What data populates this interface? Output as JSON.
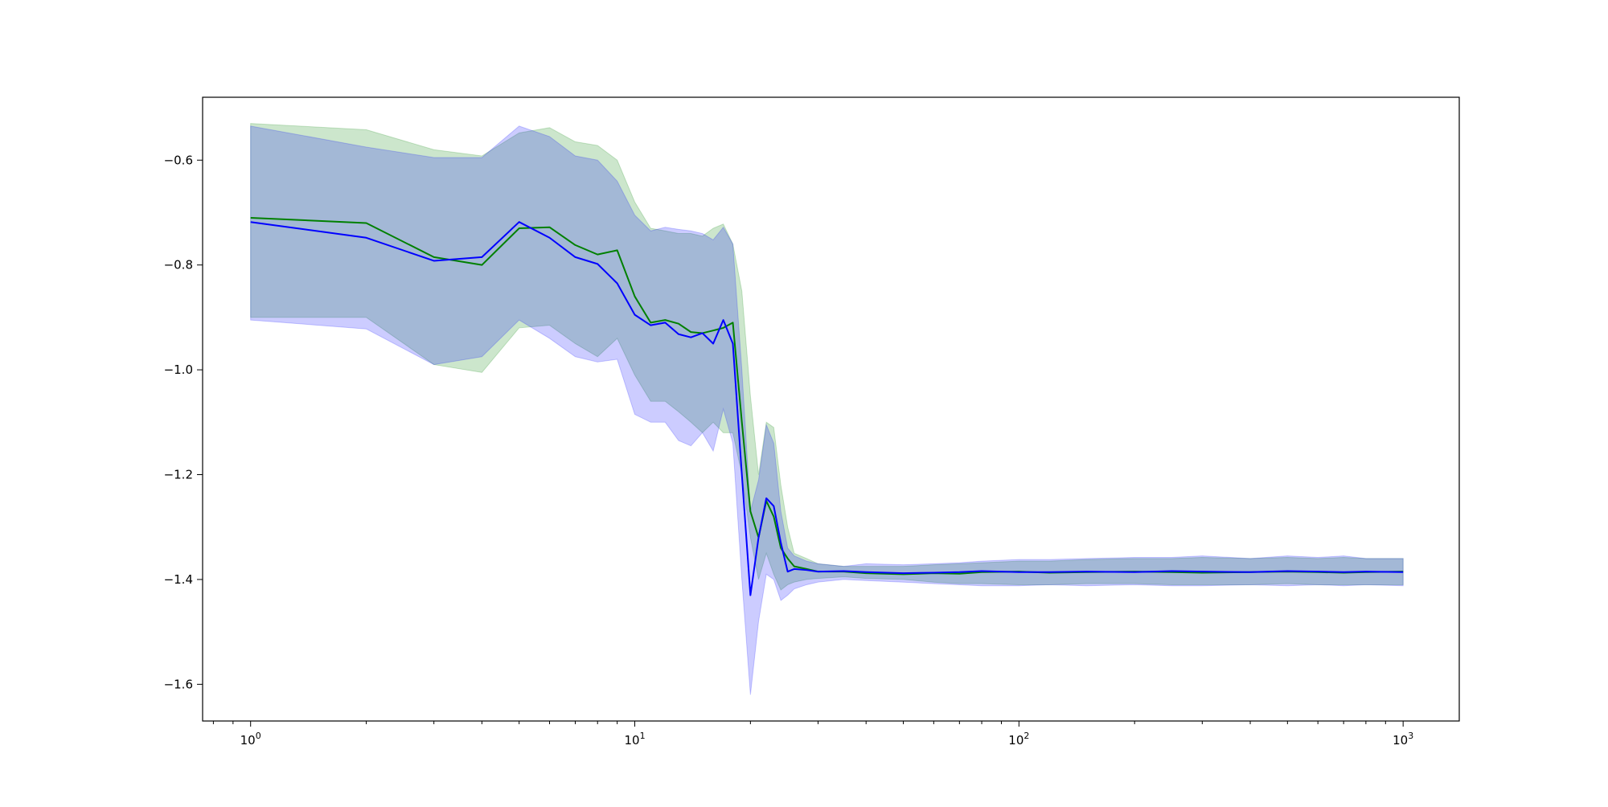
{
  "chart_data": {
    "type": "line",
    "title": "",
    "xlabel": "",
    "ylabel": "",
    "xscale": "log",
    "xlim": [
      0.75,
      1400
    ],
    "ylim": [
      -1.67,
      -0.48
    ],
    "grid": false,
    "x_ticks": [
      {
        "value": 1,
        "base": "10",
        "exp": "0"
      },
      {
        "value": 10,
        "base": "10",
        "exp": "1"
      },
      {
        "value": 100,
        "base": "10",
        "exp": "2"
      },
      {
        "value": 1000,
        "base": "10",
        "exp": "3"
      }
    ],
    "y_ticks": [
      {
        "value": -0.6,
        "label": "−0.6"
      },
      {
        "value": -0.8,
        "label": "−0.8"
      },
      {
        "value": -1.0,
        "label": "−1.0"
      },
      {
        "value": -1.2,
        "label": "−1.2"
      },
      {
        "value": -1.4,
        "label": "−1.4"
      },
      {
        "value": -1.6,
        "label": "−1.6"
      }
    ],
    "series": [
      {
        "color": "#008000",
        "band_color": "#008000",
        "band_opacity": 0.2,
        "x": [
          1,
          2,
          3,
          4,
          5,
          6,
          7,
          8,
          9,
          10,
          11,
          12,
          13,
          14,
          15,
          16,
          17,
          18,
          19,
          20,
          21,
          22,
          23,
          24,
          25,
          26,
          28,
          30,
          35,
          40,
          50,
          60,
          70,
          80,
          100,
          120,
          150,
          200,
          250,
          300,
          400,
          500,
          600,
          700,
          800,
          1000
        ],
        "y": [
          -0.71,
          -0.72,
          -0.785,
          -0.8,
          -0.73,
          -0.728,
          -0.762,
          -0.78,
          -0.772,
          -0.86,
          -0.91,
          -0.905,
          -0.912,
          -0.928,
          -0.93,
          -0.925,
          -0.92,
          -0.91,
          -1.1,
          -1.27,
          -1.32,
          -1.25,
          -1.28,
          -1.34,
          -1.36,
          -1.375,
          -1.38,
          -1.385,
          -1.385,
          -1.388,
          -1.39,
          -1.388,
          -1.389,
          -1.386,
          -1.385,
          -1.387,
          -1.386,
          -1.385,
          -1.386,
          -1.387,
          -1.386,
          -1.385,
          -1.386,
          -1.387,
          -1.386,
          -1.385
        ],
        "upper": [
          -0.53,
          -0.542,
          -0.58,
          -0.592,
          -0.548,
          -0.538,
          -0.565,
          -0.572,
          -0.6,
          -0.68,
          -0.73,
          -0.735,
          -0.74,
          -0.74,
          -0.745,
          -0.73,
          -0.722,
          -0.76,
          -0.85,
          -1.05,
          -1.2,
          -1.1,
          -1.11,
          -1.22,
          -1.3,
          -1.35,
          -1.36,
          -1.37,
          -1.375,
          -1.375,
          -1.375,
          -1.372,
          -1.37,
          -1.368,
          -1.365,
          -1.365,
          -1.362,
          -1.36,
          -1.36,
          -1.358,
          -1.36,
          -1.358,
          -1.36,
          -1.358,
          -1.36,
          -1.36
        ],
        "lower": [
          -0.9,
          -0.9,
          -0.99,
          -1.005,
          -0.92,
          -0.915,
          -0.95,
          -0.975,
          -0.94,
          -1.01,
          -1.06,
          -1.06,
          -1.08,
          -1.1,
          -1.12,
          -1.1,
          -1.12,
          -1.12,
          -1.2,
          -1.32,
          -1.4,
          -1.35,
          -1.39,
          -1.42,
          -1.41,
          -1.405,
          -1.4,
          -1.398,
          -1.395,
          -1.398,
          -1.4,
          -1.405,
          -1.408,
          -1.408,
          -1.41,
          -1.41,
          -1.408,
          -1.408,
          -1.41,
          -1.41,
          -1.41,
          -1.408,
          -1.41,
          -1.41,
          -1.41,
          -1.41
        ]
      },
      {
        "color": "#0000ff",
        "band_color": "#0000ff",
        "band_opacity": 0.2,
        "x": [
          1,
          2,
          3,
          4,
          5,
          6,
          7,
          8,
          9,
          10,
          11,
          12,
          13,
          14,
          15,
          16,
          17,
          18,
          19,
          20,
          21,
          22,
          23,
          24,
          25,
          26,
          28,
          30,
          35,
          40,
          50,
          60,
          70,
          80,
          100,
          120,
          150,
          200,
          250,
          300,
          400,
          500,
          600,
          700,
          800,
          1000
        ],
        "y": [
          -0.718,
          -0.748,
          -0.792,
          -0.785,
          -0.718,
          -0.748,
          -0.785,
          -0.798,
          -0.835,
          -0.895,
          -0.915,
          -0.91,
          -0.932,
          -0.938,
          -0.93,
          -0.95,
          -0.905,
          -0.95,
          -1.2,
          -1.43,
          -1.32,
          -1.245,
          -1.26,
          -1.33,
          -1.385,
          -1.38,
          -1.382,
          -1.385,
          -1.384,
          -1.386,
          -1.388,
          -1.387,
          -1.386,
          -1.384,
          -1.386,
          -1.386,
          -1.385,
          -1.386,
          -1.384,
          -1.385,
          -1.386,
          -1.384,
          -1.385,
          -1.386,
          -1.385,
          -1.386
        ],
        "upper": [
          -0.535,
          -0.575,
          -0.595,
          -0.595,
          -0.535,
          -0.555,
          -0.592,
          -0.6,
          -0.64,
          -0.705,
          -0.735,
          -0.728,
          -0.732,
          -0.735,
          -0.74,
          -0.752,
          -0.728,
          -0.76,
          -1.0,
          -1.27,
          -1.21,
          -1.105,
          -1.14,
          -1.27,
          -1.34,
          -1.355,
          -1.365,
          -1.37,
          -1.375,
          -1.37,
          -1.372,
          -1.37,
          -1.368,
          -1.365,
          -1.362,
          -1.362,
          -1.36,
          -1.358,
          -1.358,
          -1.355,
          -1.36,
          -1.355,
          -1.358,
          -1.355,
          -1.36,
          -1.36
        ],
        "lower": [
          -0.905,
          -0.922,
          -0.99,
          -0.975,
          -0.905,
          -0.94,
          -0.975,
          -0.985,
          -0.98,
          -1.085,
          -1.1,
          -1.1,
          -1.135,
          -1.145,
          -1.12,
          -1.155,
          -1.075,
          -1.14,
          -1.4,
          -1.62,
          -1.48,
          -1.39,
          -1.4,
          -1.44,
          -1.43,
          -1.418,
          -1.41,
          -1.405,
          -1.4,
          -1.402,
          -1.405,
          -1.408,
          -1.41,
          -1.412,
          -1.412,
          -1.41,
          -1.412,
          -1.41,
          -1.412,
          -1.412,
          -1.41,
          -1.412,
          -1.41,
          -1.412,
          -1.41,
          -1.412
        ]
      }
    ]
  }
}
